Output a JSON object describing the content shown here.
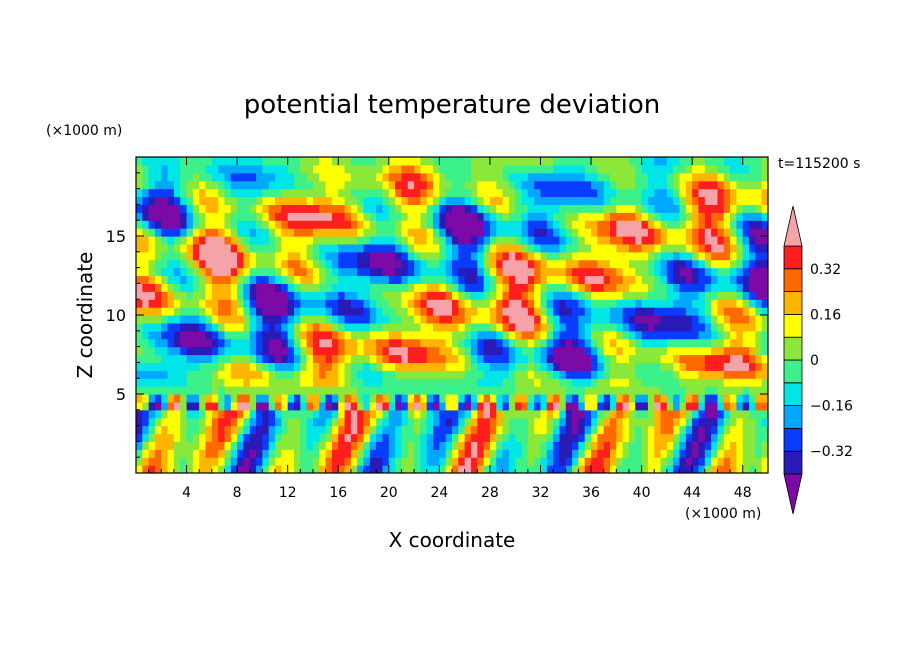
{
  "chart_data": {
    "type": "heatmap",
    "title": "potential temperature deviation",
    "xlabel": "X coordinate",
    "ylabel": "Z coordinate",
    "x_unit": "(×1000 m)",
    "y_unit": "(×1000 m)",
    "time_label": "t=115200 s",
    "xlim": [
      0,
      50
    ],
    "ylim": [
      0,
      20
    ],
    "x_ticks": [
      4,
      8,
      12,
      16,
      20,
      24,
      28,
      32,
      36,
      40,
      44,
      48
    ],
    "y_ticks": [
      5,
      10,
      15
    ],
    "colorbar": {
      "levels": [
        -0.4,
        -0.32,
        -0.24,
        -0.16,
        -0.08,
        0,
        0.08,
        0.16,
        0.24,
        0.32,
        0.4
      ],
      "colors": [
        "#7b0aa6",
        "#2a1ab8",
        "#0a3cff",
        "#00a8ff",
        "#00e5e5",
        "#3cf08a",
        "#8ae83a",
        "#ffff00",
        "#ffb400",
        "#ff6a00",
        "#ff1e1e",
        "#f5a3a8"
      ],
      "labels": [
        "0.32",
        "0.16",
        "0",
        "-0.16",
        "-0.32"
      ],
      "label_values": [
        0.32,
        0.16,
        0,
        -0.16,
        -0.32
      ]
    }
  }
}
